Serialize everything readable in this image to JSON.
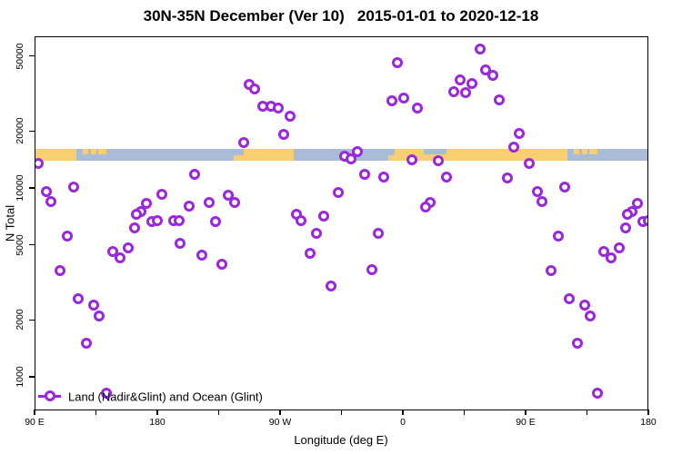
{
  "colors": {
    "point": "#9A26DF",
    "land": "#F9CE71",
    "ocean": "#A9BCD7",
    "axis": "#000000"
  },
  "chart_data": {
    "type": "scatter",
    "title": "30N-35N December (Ver 10)   2015-01-01 to 2020-12-18",
    "xlabel": "Longitude (deg E)",
    "ylabel": "N Total",
    "legend": {
      "label": "Land (Nadir&Glint) and Ocean (Glint)",
      "marker": "open-circle-on-line",
      "position": "bottom-left"
    },
    "x_axis": {
      "note": "axis_deg = degrees east of left edge (left edge = 90E); axis wraps 90E-180-90W-0-90E-180, total 450 deg; data in 0-90 repeats at 360-450",
      "span_deg": 450,
      "major_ticks": [
        {
          "deg": 0,
          "label": "90 E"
        },
        {
          "deg": 90,
          "label": "180"
        },
        {
          "deg": 180,
          "label": "90 W"
        },
        {
          "deg": 270,
          "label": "0"
        },
        {
          "deg": 360,
          "label": "90 E"
        },
        {
          "deg": 450,
          "label": "180"
        }
      ],
      "minor_tick_degs": [
        45,
        135,
        225,
        315,
        405
      ]
    },
    "y_axis": {
      "scale": "log10",
      "tick_values": [
        1000,
        2000,
        5000,
        10000,
        20000,
        50000
      ],
      "tick_labels": [
        "1000",
        "2000",
        "5000",
        "10000",
        "20000",
        "50000"
      ],
      "range": [
        670,
        63000
      ]
    },
    "map_band": {
      "note": "world-map strip of 30N-35N latitude band; ocean base with land segments; part = full|top|bottom of strip",
      "approx_value_level": 15500,
      "land_segments": [
        {
          "from": 0,
          "to": 30.7,
          "part": "full"
        },
        {
          "from": 35,
          "to": 39.3,
          "part": "top"
        },
        {
          "from": 41.3,
          "to": 45.3,
          "part": "top"
        },
        {
          "from": 46.5,
          "to": 52.7,
          "part": "top"
        },
        {
          "from": 146,
          "to": 153.3,
          "part": "bottom"
        },
        {
          "from": 153.3,
          "to": 190,
          "part": "full"
        },
        {
          "from": 259,
          "to": 264,
          "part": "bottom"
        },
        {
          "from": 264,
          "to": 390.7,
          "part": "full"
        },
        {
          "from": 395,
          "to": 399.3,
          "part": "top"
        },
        {
          "from": 401.3,
          "to": 405.3,
          "part": "top"
        },
        {
          "from": 406.5,
          "to": 412.7,
          "part": "top"
        }
      ],
      "ocean_notches": [
        {
          "from": 285.3,
          "to": 302,
          "part": "top"
        }
      ]
    },
    "series": [
      {
        "name": "Land (Nadir&Glint) and Ocean (Glint)",
        "points": [
          [
            2.9,
            13500
          ],
          [
            8.5,
            9600
          ],
          [
            12,
            8440
          ],
          [
            28.5,
            10100
          ],
          [
            82,
            8310
          ],
          [
            78,
            7520
          ],
          [
            74.7,
            7250
          ],
          [
            86.3,
            6640
          ],
          [
            73.3,
            6150
          ],
          [
            157.5,
            35200
          ],
          [
            161.3,
            33300
          ],
          [
            167.3,
            27200
          ],
          [
            173.1,
            27000
          ],
          [
            178.7,
            26400
          ],
          [
            153.1,
            17300
          ],
          [
            117.5,
            11800
          ],
          [
            93.1,
            9220
          ],
          [
            113.1,
            8040
          ],
          [
            128,
            8400
          ],
          [
            142,
            9150
          ],
          [
            146.9,
            8350
          ],
          [
            89.7,
            6710
          ],
          [
            102,
            6710
          ],
          [
            106,
            6710
          ],
          [
            132.7,
            6640
          ],
          [
            266.2,
            46100
          ],
          [
            261.8,
            28900
          ],
          [
            187.5,
            23900
          ],
          [
            182.5,
            19200
          ],
          [
            227.5,
            14800
          ],
          [
            236.9,
            15600
          ],
          [
            232,
            14200
          ],
          [
            242,
            11800
          ],
          [
            256.2,
            11400
          ],
          [
            222.5,
            9490
          ],
          [
            191.8,
            7250
          ],
          [
            195.3,
            6710
          ],
          [
            211.8,
            7120
          ],
          [
            326.5,
            54200
          ],
          [
            330.9,
            42300
          ],
          [
            336.2,
            39300
          ],
          [
            311.8,
            37200
          ],
          [
            320.7,
            35800
          ],
          [
            307.3,
            32400
          ],
          [
            316.2,
            32100
          ],
          [
            270.9,
            29800
          ],
          [
            340.7,
            29300
          ],
          [
            280.7,
            26500
          ],
          [
            355.3,
            19500
          ],
          [
            351.3,
            16400
          ],
          [
            276.9,
            14100
          ],
          [
            296.2,
            14000
          ],
          [
            302,
            11400
          ],
          [
            346.5,
            11300
          ],
          [
            290.2,
            8350
          ],
          [
            286.5,
            7950
          ],
          [
            24,
            5560
          ],
          [
            57.5,
            4590
          ],
          [
            62.9,
            4260
          ],
          [
            68.7,
            4830
          ],
          [
            18.5,
            3640
          ],
          [
            31.8,
            2580
          ],
          [
            43.1,
            2400
          ],
          [
            47.3,
            2090
          ],
          [
            38,
            1500
          ],
          [
            52.9,
            820
          ],
          [
            106.9,
            5070
          ],
          [
            122.9,
            4410
          ],
          [
            137.3,
            3960
          ],
          [
            206.9,
            5730
          ],
          [
            251.8,
            5730
          ],
          [
            202,
            4510
          ],
          [
            247.3,
            3680
          ],
          [
            217.5,
            3030
          ]
        ]
      }
    ]
  }
}
